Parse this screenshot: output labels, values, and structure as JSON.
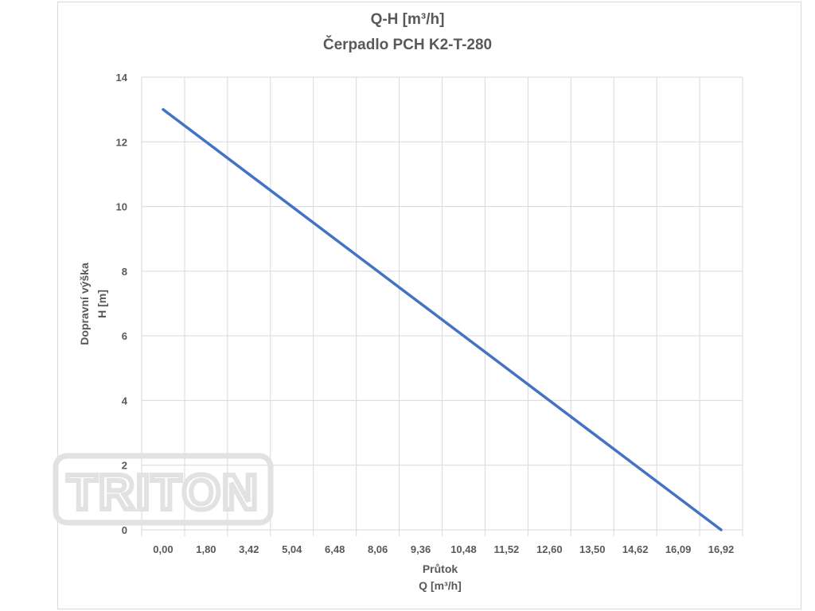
{
  "chart_data": {
    "type": "line",
    "title": "Q-H  [m³/h]",
    "subtitle": "Čerpadlo PCH K2-T-280",
    "xlabel_line1": "Průtok",
    "xlabel_line2": "Q [m³/h]",
    "ylabel_line1": "Dopravní výška",
    "ylabel_line2": "H [m]",
    "categories": [
      "0,00",
      "1,80",
      "3,42",
      "5,04",
      "6,48",
      "8,06",
      "9,36",
      "10,48",
      "11,52",
      "12,60",
      "13,50",
      "14,62",
      "16,09",
      "16,92"
    ],
    "values": [
      13,
      12,
      11,
      10,
      9,
      8,
      7,
      6,
      5,
      4,
      3,
      2,
      1,
      0
    ],
    "ylim": [
      0,
      14
    ],
    "yticks": [
      0,
      2,
      4,
      6,
      8,
      10,
      12,
      14
    ],
    "grid": true,
    "line_color": "#4472c4"
  },
  "watermark": {
    "text": "TRITON"
  }
}
